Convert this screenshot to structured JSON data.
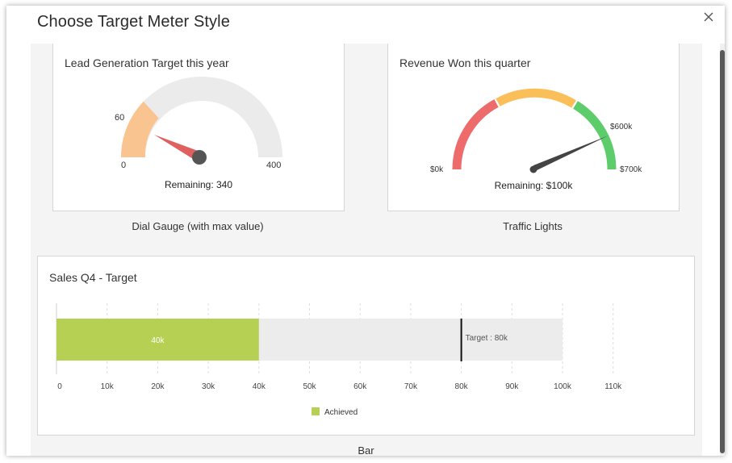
{
  "modal": {
    "title": "Choose Target Meter Style"
  },
  "options": {
    "dial_gauge": {
      "card_title": "Lead Generation Target this year",
      "caption": "Dial Gauge (with max value)",
      "gauge": {
        "min_label": "0",
        "mark_label": "60",
        "max_label": "400",
        "min": 0,
        "max": 400,
        "achieved": 60,
        "remaining_text": "Remaining: 340"
      }
    },
    "traffic_lights": {
      "card_title": "Revenue Won this quarter",
      "caption": "Traffic Lights",
      "gauge": {
        "min_label": "$0k",
        "mark_label": "$600k",
        "max_label": "$700k",
        "min": 0,
        "max": 700,
        "value": 600,
        "remaining_text": "Remaining: $100k"
      }
    },
    "bar": {
      "card_title": "Sales Q4 - Target",
      "caption": "Bar",
      "legend_label": "Achieved"
    }
  },
  "colors": {
    "gauge_track": "#ebebeb",
    "gauge_fill": "#f9c48f",
    "needle_red": "#e06060",
    "hub": "#555555",
    "light_red": "#ee6b6b",
    "light_amber": "#fbbf5a",
    "light_green": "#5ccd6a",
    "bar_achieved": "#b6d053",
    "bar_remaining": "#ececec"
  },
  "chart_data": {
    "type": "bar",
    "orientation": "horizontal",
    "categories": [
      "Sales Q4 - Target"
    ],
    "series": [
      {
        "name": "Achieved",
        "values": [
          40
        ]
      }
    ],
    "value_labels": [
      "40k"
    ],
    "max_value": 100,
    "target": 80,
    "target_label": "Target : 80k",
    "xlim": [
      0,
      110
    ],
    "x_ticks": [
      0,
      10,
      20,
      30,
      40,
      50,
      60,
      70,
      80,
      90,
      100,
      110
    ],
    "x_tick_labels": [
      "0",
      "10k",
      "20k",
      "30k",
      "40k",
      "50k",
      "60k",
      "70k",
      "80k",
      "90k",
      "100k",
      "110k"
    ],
    "grid": true,
    "legend_position": "bottom-center"
  }
}
